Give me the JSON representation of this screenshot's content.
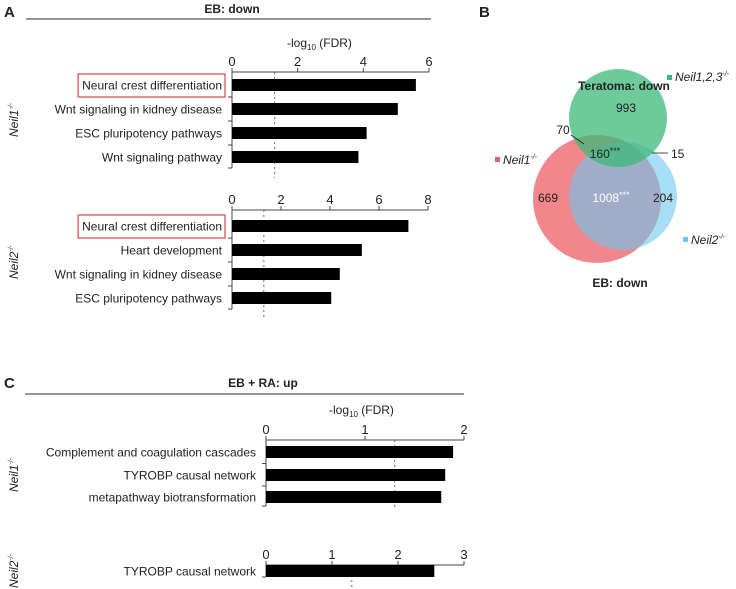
{
  "panels": {
    "a": "A",
    "b": "B",
    "c": "C"
  },
  "panel_a": {
    "title": "EB: down",
    "xlabel_main": "-log",
    "xlabel_sub": "10",
    "xlabel_rest": " (FDR)"
  },
  "panel_c": {
    "title": "EB + RA: up",
    "xlabel_main": "-log",
    "xlabel_sub": "10",
    "xlabel_rest": " (FDR)"
  },
  "chart_data": [
    {
      "type": "bar",
      "orientation": "horizontal",
      "panel": "A",
      "group": "Neil1",
      "group_sup": "-/-",
      "categories": [
        "Neural crest differentiation",
        "Wnt signaling in kidney disease",
        "ESC pluripotency pathways",
        "Wnt signaling pathway"
      ],
      "values": [
        5.6,
        5.05,
        4.1,
        3.85
      ],
      "highlight": [
        0
      ],
      "xlim": [
        0,
        6
      ],
      "ticks": [
        0,
        2,
        4,
        6
      ],
      "threshold": 1.3,
      "xlabel": "-log10 (FDR)"
    },
    {
      "type": "bar",
      "orientation": "horizontal",
      "panel": "A",
      "group": "Neil2",
      "group_sup": "-/-",
      "categories": [
        "Neural crest differentiation",
        "Heart development",
        "Wnt signaling in kidney disease",
        "ESC pluripotency pathways"
      ],
      "values": [
        7.2,
        5.3,
        4.4,
        4.05
      ],
      "highlight": [
        0
      ],
      "xlim": [
        0,
        8
      ],
      "ticks": [
        0,
        2,
        4,
        6,
        8
      ],
      "threshold": 1.3,
      "xlabel": "-log10 (FDR)"
    },
    {
      "type": "bar",
      "orientation": "horizontal",
      "panel": "C",
      "group": "Neil1",
      "group_sup": "-/-",
      "categories": [
        "Complement and coagulation cascades",
        "TYROBP causal network",
        "metapathway biotransformation"
      ],
      "values": [
        1.89,
        1.81,
        1.77
      ],
      "highlight": [],
      "xlim": [
        0,
        2
      ],
      "ticks": [
        0,
        1,
        2
      ],
      "threshold": 1.3,
      "xlabel": "-log10 (FDR)"
    },
    {
      "type": "bar",
      "orientation": "horizontal",
      "panel": "C",
      "group": "Neil2",
      "group_sup": "-/-",
      "categories": [
        "TYROBP causal network"
      ],
      "values": [
        2.55
      ],
      "highlight": [],
      "xlim": [
        0,
        3
      ],
      "ticks": [
        0,
        1,
        2,
        3
      ],
      "threshold": 1.3,
      "xlabel": "-log10 (FDR)"
    }
  ],
  "venn": {
    "title_top": "Teratoma: down",
    "title_bottom": "EB: down",
    "sets": [
      {
        "name": "Neil1,2,3",
        "sup": "-/-",
        "color": "#3cb878"
      },
      {
        "name": "Neil1",
        "sup": "-/-",
        "color": "#ec5f66"
      },
      {
        "name": "Neil2",
        "sup": "-/-",
        "color": "#6cc7ee"
      }
    ],
    "counts": {
      "teratoma_only": "993",
      "teratoma_neil1": "70",
      "all_three": "160",
      "all_three_sig": "***",
      "teratoma_neil2": "15",
      "neil1_only": "669",
      "neil1_neil2": "1008",
      "neil1_neil2_sig": "***",
      "neil2_only": "204"
    }
  },
  "colors": {
    "bar": "#000000",
    "highlight_box": "#d9464b",
    "rule": "#555555"
  }
}
